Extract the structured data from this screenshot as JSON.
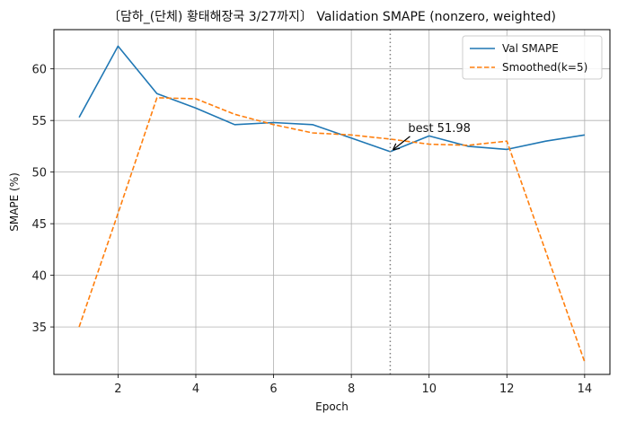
{
  "chart_data": {
    "type": "line",
    "title": "〔담하_(단체) 황태해장국 3/27까지〕 Validation SMAPE (nonzero, weighted)",
    "xlabel": "Epoch",
    "ylabel": "SMAPE (%)",
    "xlim": [
      0.35,
      14.65
    ],
    "ylim": [
      30.4,
      63.8
    ],
    "x_ticks": [
      2,
      4,
      6,
      8,
      10,
      12,
      14
    ],
    "y_ticks": [
      35,
      40,
      45,
      50,
      55,
      60
    ],
    "grid": true,
    "legend_position": "top-right",
    "x": [
      1,
      2,
      3,
      4,
      5,
      6,
      7,
      8,
      9,
      10,
      11,
      12,
      13,
      14
    ],
    "series": [
      {
        "name": "Val SMAPE",
        "color": "#1f77b4",
        "style": "solid",
        "values": [
          55.3,
          62.2,
          57.6,
          56.2,
          54.6,
          54.8,
          54.6,
          53.3,
          51.98,
          53.5,
          52.5,
          52.2,
          53.0,
          53.6
        ]
      },
      {
        "name": "Smoothed(k=5)",
        "color": "#ff7f0e",
        "style": "dashed",
        "values": [
          35.0,
          46.0,
          57.2,
          57.1,
          55.6,
          54.6,
          53.8,
          53.6,
          53.2,
          52.7,
          52.6,
          53.0,
          42.3,
          31.6
        ]
      }
    ],
    "best_marker": {
      "epoch": 9,
      "value": 51.98,
      "label": "best 51.98",
      "line_color": "#808080",
      "line_style": "dotted"
    }
  }
}
